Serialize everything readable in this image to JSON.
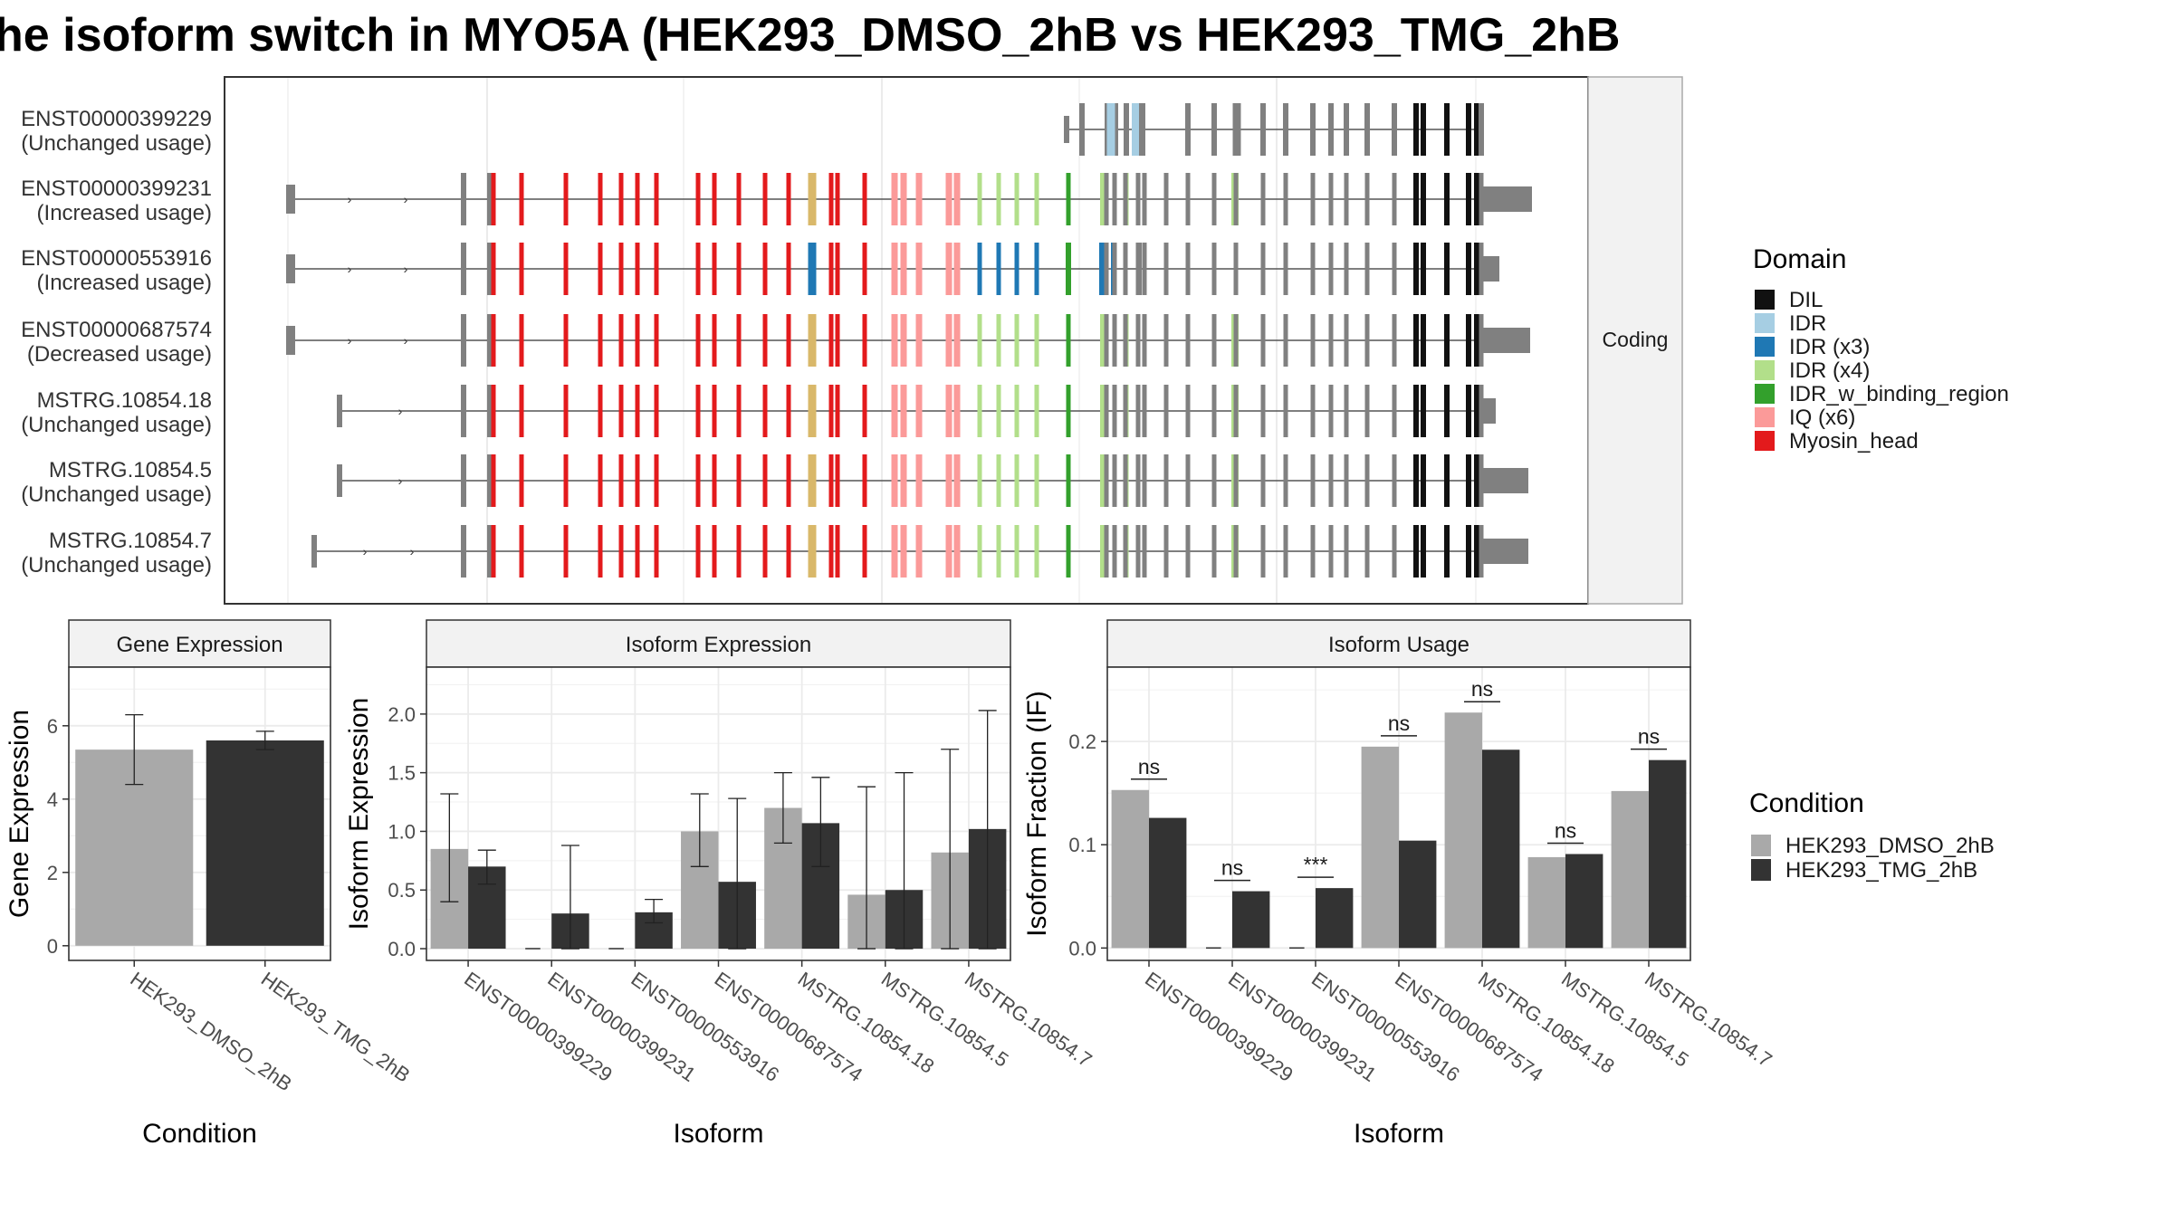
{
  "title": "he isoform switch in MYO5A (HEK293_DMSO_2hB vs HEK293_TMG_2hB",
  "colors": {
    "DIL": "#111111",
    "IDR": "#a6cee3",
    "IDR (x3)": "#1f78b4",
    "IDR (x4)": "#b2df8a",
    "IDR_w_binding_region": "#33a02c",
    "IQ (x6)": "#fb9a99",
    "Myosin_head": "#e31a1c",
    "noncoding": "#808080",
    "overlap": "#d9b86a",
    "cond1": "#a9a9a9",
    "cond2": "#333333"
  },
  "structure": {
    "strip_label": "Coding",
    "transcripts": [
      {
        "name": "ENST00000399229",
        "usage": "(Unchanged usage)"
      },
      {
        "name": "ENST00000399231",
        "usage": "(Increased usage)"
      },
      {
        "name": "ENST00000553916",
        "usage": "(Increased usage)"
      },
      {
        "name": "ENST00000687574",
        "usage": "(Decreased usage)"
      },
      {
        "name": "MSTRG.10854.18",
        "usage": "(Unchanged usage)"
      },
      {
        "name": "MSTRG.10854.5",
        "usage": "(Unchanged usage)"
      },
      {
        "name": "MSTRG.10854.7",
        "usage": "(Unchanged usage)"
      }
    ]
  },
  "legend_domain": {
    "title": "Domain",
    "items": [
      "DIL",
      "IDR",
      "IDR (x3)",
      "IDR (x4)",
      "IDR_w_binding_region",
      "IQ (x6)",
      "Myosin_head"
    ]
  },
  "legend_condition": {
    "title": "Condition",
    "items": [
      "HEK293_DMSO_2hB",
      "HEK293_TMG_2hB"
    ]
  },
  "chart_data": [
    {
      "type": "bar",
      "title": "Gene Expression",
      "xlabel": "Condition",
      "ylabel": "Gene Expression",
      "categories": [
        "HEK293_DMSO_2hB",
        "HEK293_TMG_2hB"
      ],
      "values": [
        5.35,
        5.6
      ],
      "err_low": [
        4.4,
        5.35
      ],
      "err_high": [
        6.3,
        5.85
      ],
      "ylim": [
        -0.4,
        7.6
      ],
      "yticks": [
        0,
        2,
        4,
        6
      ]
    },
    {
      "type": "bar",
      "title": "Isoform Expression",
      "xlabel": "Isoform",
      "ylabel": "Isoform Expression",
      "categories": [
        "ENST00000399229",
        "ENST00000399231",
        "ENST00000553916",
        "ENST00000687574",
        "MSTRG.10854.18",
        "MSTRG.10854.5",
        "MSTRG.10854.7"
      ],
      "series": [
        {
          "name": "HEK293_DMSO_2hB",
          "values": [
            0.85,
            0.0,
            0.0,
            1.0,
            1.2,
            0.46,
            0.82
          ],
          "err_low": [
            0.4,
            0.0,
            0.0,
            0.7,
            0.9,
            0.0,
            0.0
          ],
          "err_high": [
            1.32,
            0.0,
            0.0,
            1.32,
            1.5,
            1.38,
            1.7
          ]
        },
        {
          "name": "HEK293_TMG_2hB",
          "values": [
            0.7,
            0.3,
            0.31,
            0.57,
            1.07,
            0.5,
            1.02
          ],
          "err_low": [
            0.55,
            0.0,
            0.22,
            0.0,
            0.7,
            0.0,
            0.0
          ],
          "err_high": [
            0.84,
            0.88,
            0.42,
            1.28,
            1.46,
            1.5,
            2.03
          ]
        }
      ],
      "ylim": [
        -0.1,
        2.4
      ],
      "yticks": [
        0.0,
        0.5,
        1.0,
        1.5,
        2.0
      ],
      "ytick_labels": [
        "0.0",
        "0.5",
        "1.0",
        "1.5",
        "2.0"
      ]
    },
    {
      "type": "bar",
      "title": "Isoform Usage",
      "xlabel": "Isoform",
      "ylabel": "Isoform Fraction (IF)",
      "categories": [
        "ENST00000399229",
        "ENST00000399231",
        "ENST00000553916",
        "ENST00000687574",
        "MSTRG.10854.18",
        "MSTRG.10854.5",
        "MSTRG.10854.7"
      ],
      "series": [
        {
          "name": "HEK293_DMSO_2hB",
          "values": [
            0.153,
            0.0,
            0.0,
            0.195,
            0.228,
            0.088,
            0.152
          ]
        },
        {
          "name": "HEK293_TMG_2hB",
          "values": [
            0.126,
            0.055,
            0.058,
            0.104,
            0.192,
            0.091,
            0.182
          ]
        }
      ],
      "significance": [
        "ns",
        "ns",
        "***",
        "ns",
        "ns",
        "ns",
        "ns"
      ],
      "ylim": [
        -0.012,
        0.272
      ],
      "yticks": [
        0.0,
        0.1,
        0.2
      ],
      "ytick_labels": [
        "0.0",
        "0.1",
        "0.2"
      ]
    }
  ]
}
